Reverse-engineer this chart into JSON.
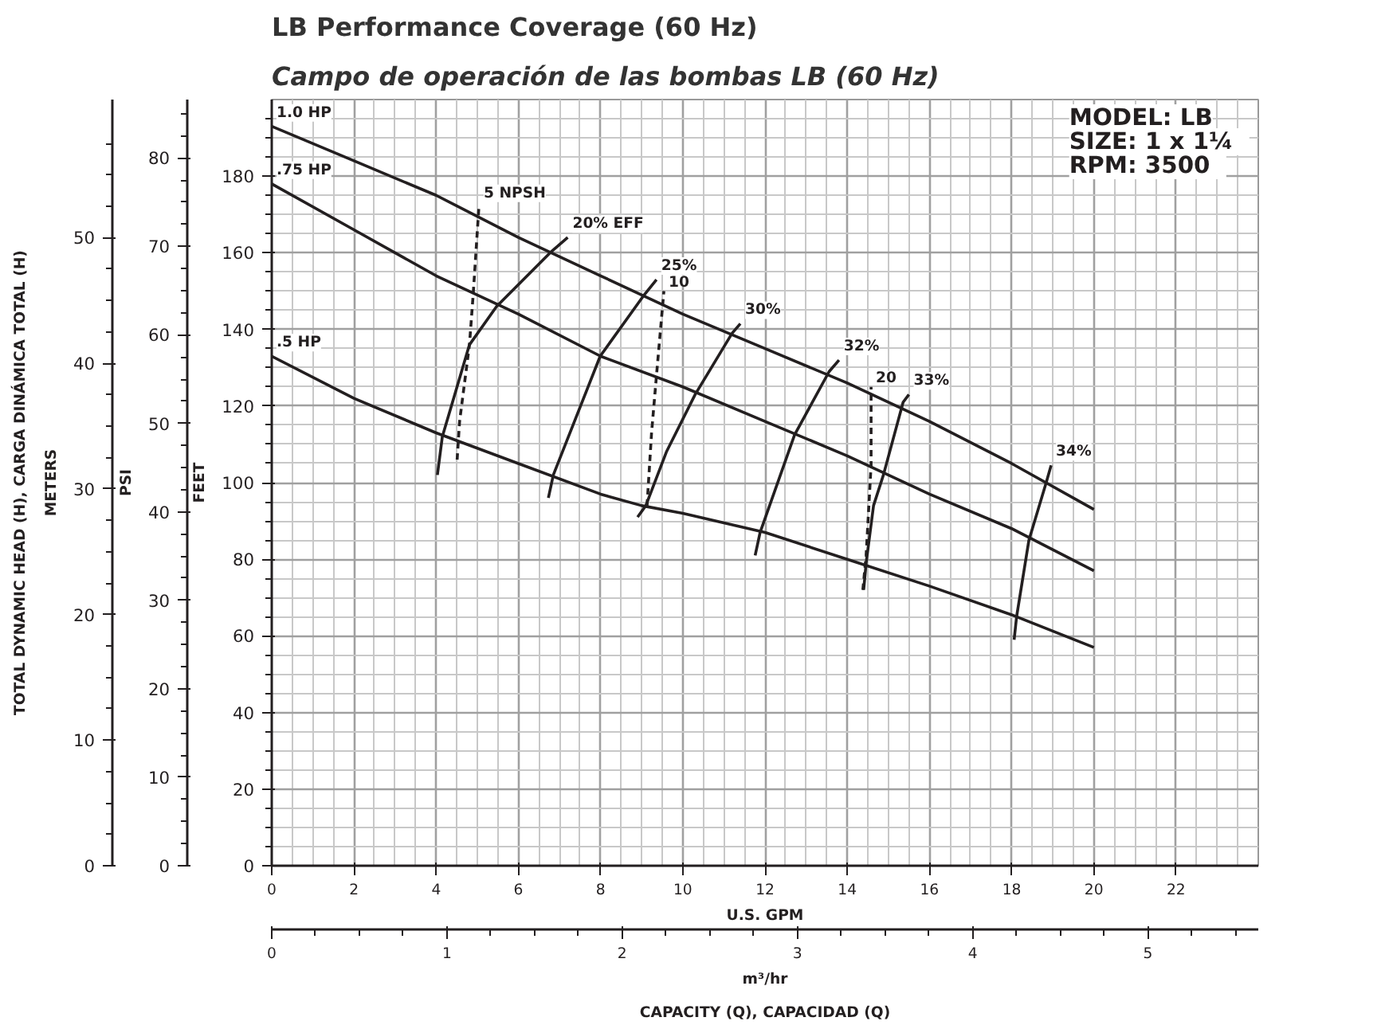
{
  "chart_data": {
    "type": "line",
    "title": "LB Performance Coverage (60 Hz)",
    "subtitle": "Campo de operación de las bombas LB (60 Hz)",
    "xlabel": "U.S. GPM",
    "x2label": "m³/hr",
    "ylabel": "FEET",
    "y2label": "METERS",
    "y3label": "PSI",
    "xlim": [
      0,
      24
    ],
    "xticks": [
      0,
      2,
      4,
      6,
      8,
      10,
      12,
      14,
      16,
      18,
      20,
      22
    ],
    "x2lim": [
      0,
      5.63
    ],
    "x2ticks": [
      0,
      1,
      2,
      3,
      4,
      5
    ],
    "ylim": [
      0,
      200
    ],
    "yticks": [
      0,
      20,
      40,
      60,
      80,
      100,
      120,
      140,
      160,
      180
    ],
    "y3lim": [
      0,
      86.6
    ],
    "y3ticks": [
      0,
      10,
      20,
      30,
      40,
      50,
      60,
      70,
      80
    ],
    "y2lim": [
      0,
      61
    ],
    "y2ticks": [
      0,
      10,
      20,
      30,
      40,
      50
    ],
    "grid": true,
    "legend": false,
    "marker": "none",
    "line_style": "solid",
    "annotations": [
      "TOTAL DYNAMIC HEAD (H), CARGA DINÁMICA TOTAL (H)",
      "CAPACITY (Q), CAPACIDAD (Q)",
      "MODEL: LB",
      "SIZE:   1 x 1¼",
      "RPM:   3500"
    ],
    "series": [
      {
        "name": "1.0 HP",
        "color": "#231f20",
        "x": [
          0,
          2,
          4,
          6,
          8,
          10,
          12,
          14,
          16,
          18,
          20
        ],
        "values": [
          193,
          184,
          175,
          164,
          154,
          144,
          135,
          126,
          116,
          105,
          93
        ]
      },
      {
        "name": ".75 HP",
        "color": "#231f20",
        "x": [
          0,
          2,
          4,
          6,
          8,
          10,
          12,
          14,
          16,
          18,
          20
        ],
        "values": [
          178,
          166,
          154,
          144,
          133,
          125,
          116,
          107,
          97,
          88,
          77
        ]
      },
      {
        "name": ".5 HP",
        "color": "#231f20",
        "x": [
          0,
          2,
          4,
          6,
          8,
          9,
          10,
          12,
          14,
          16,
          18,
          20
        ],
        "values": [
          133,
          122,
          113,
          105,
          97,
          94,
          92,
          87,
          80,
          73,
          65.5,
          57
        ]
      },
      {
        "name": "20% EFF",
        "color": "#231f20",
        "x": [
          4.03,
          4.15,
          4.81,
          5.47,
          6.77,
          7.2
        ],
        "values": [
          102,
          112,
          136,
          146,
          160,
          164
        ]
      },
      {
        "name": "25%",
        "color": "#231f20",
        "x": [
          6.73,
          6.85,
          7.99,
          9.06,
          9.36
        ],
        "values": [
          96,
          102,
          133,
          149,
          153
        ]
      },
      {
        "name": "30%",
        "color": "#231f20",
        "x": [
          8.9,
          9.1,
          9.6,
          10.3,
          11.2,
          11.4
        ],
        "values": [
          91,
          94,
          108,
          123,
          139,
          141.5
        ]
      },
      {
        "name": "32%",
        "color": "#231f20",
        "x": [
          11.76,
          11.88,
          12.72,
          13.56,
          13.8
        ],
        "values": [
          81,
          87,
          112.5,
          129,
          132
        ]
      },
      {
        "name": "33%",
        "color": "#231f20",
        "x": [
          14.4,
          14.46,
          14.64,
          14.88,
          15.36,
          15.5
        ],
        "values": [
          72,
          79,
          94,
          102,
          121,
          123
        ]
      },
      {
        "name": "34%",
        "color": "#231f20",
        "x": [
          18.06,
          18.12,
          18.42,
          18.84,
          18.96
        ],
        "values": [
          59,
          65,
          85,
          100,
          104.5
        ]
      },
      {
        "name": "5 NPSH",
        "color": "#231f20",
        "line_style": "dashed",
        "x": [
          4.51,
          4.57,
          4.81,
          4.9,
          5.04
        ],
        "values": [
          106,
          116,
          136,
          149,
          172
        ]
      },
      {
        "name": "10",
        "color": "#231f20",
        "line_style": "dashed",
        "x": [
          9.13,
          9.24,
          9.36,
          9.54
        ],
        "values": [
          94,
          113,
          128,
          150
        ]
      },
      {
        "name": "20",
        "color": "#231f20",
        "line_style": "dashed",
        "x": [
          14.38,
          14.46,
          14.58,
          14.58
        ],
        "values": [
          72,
          81,
          104.5,
          125
        ]
      }
    ]
  }
}
